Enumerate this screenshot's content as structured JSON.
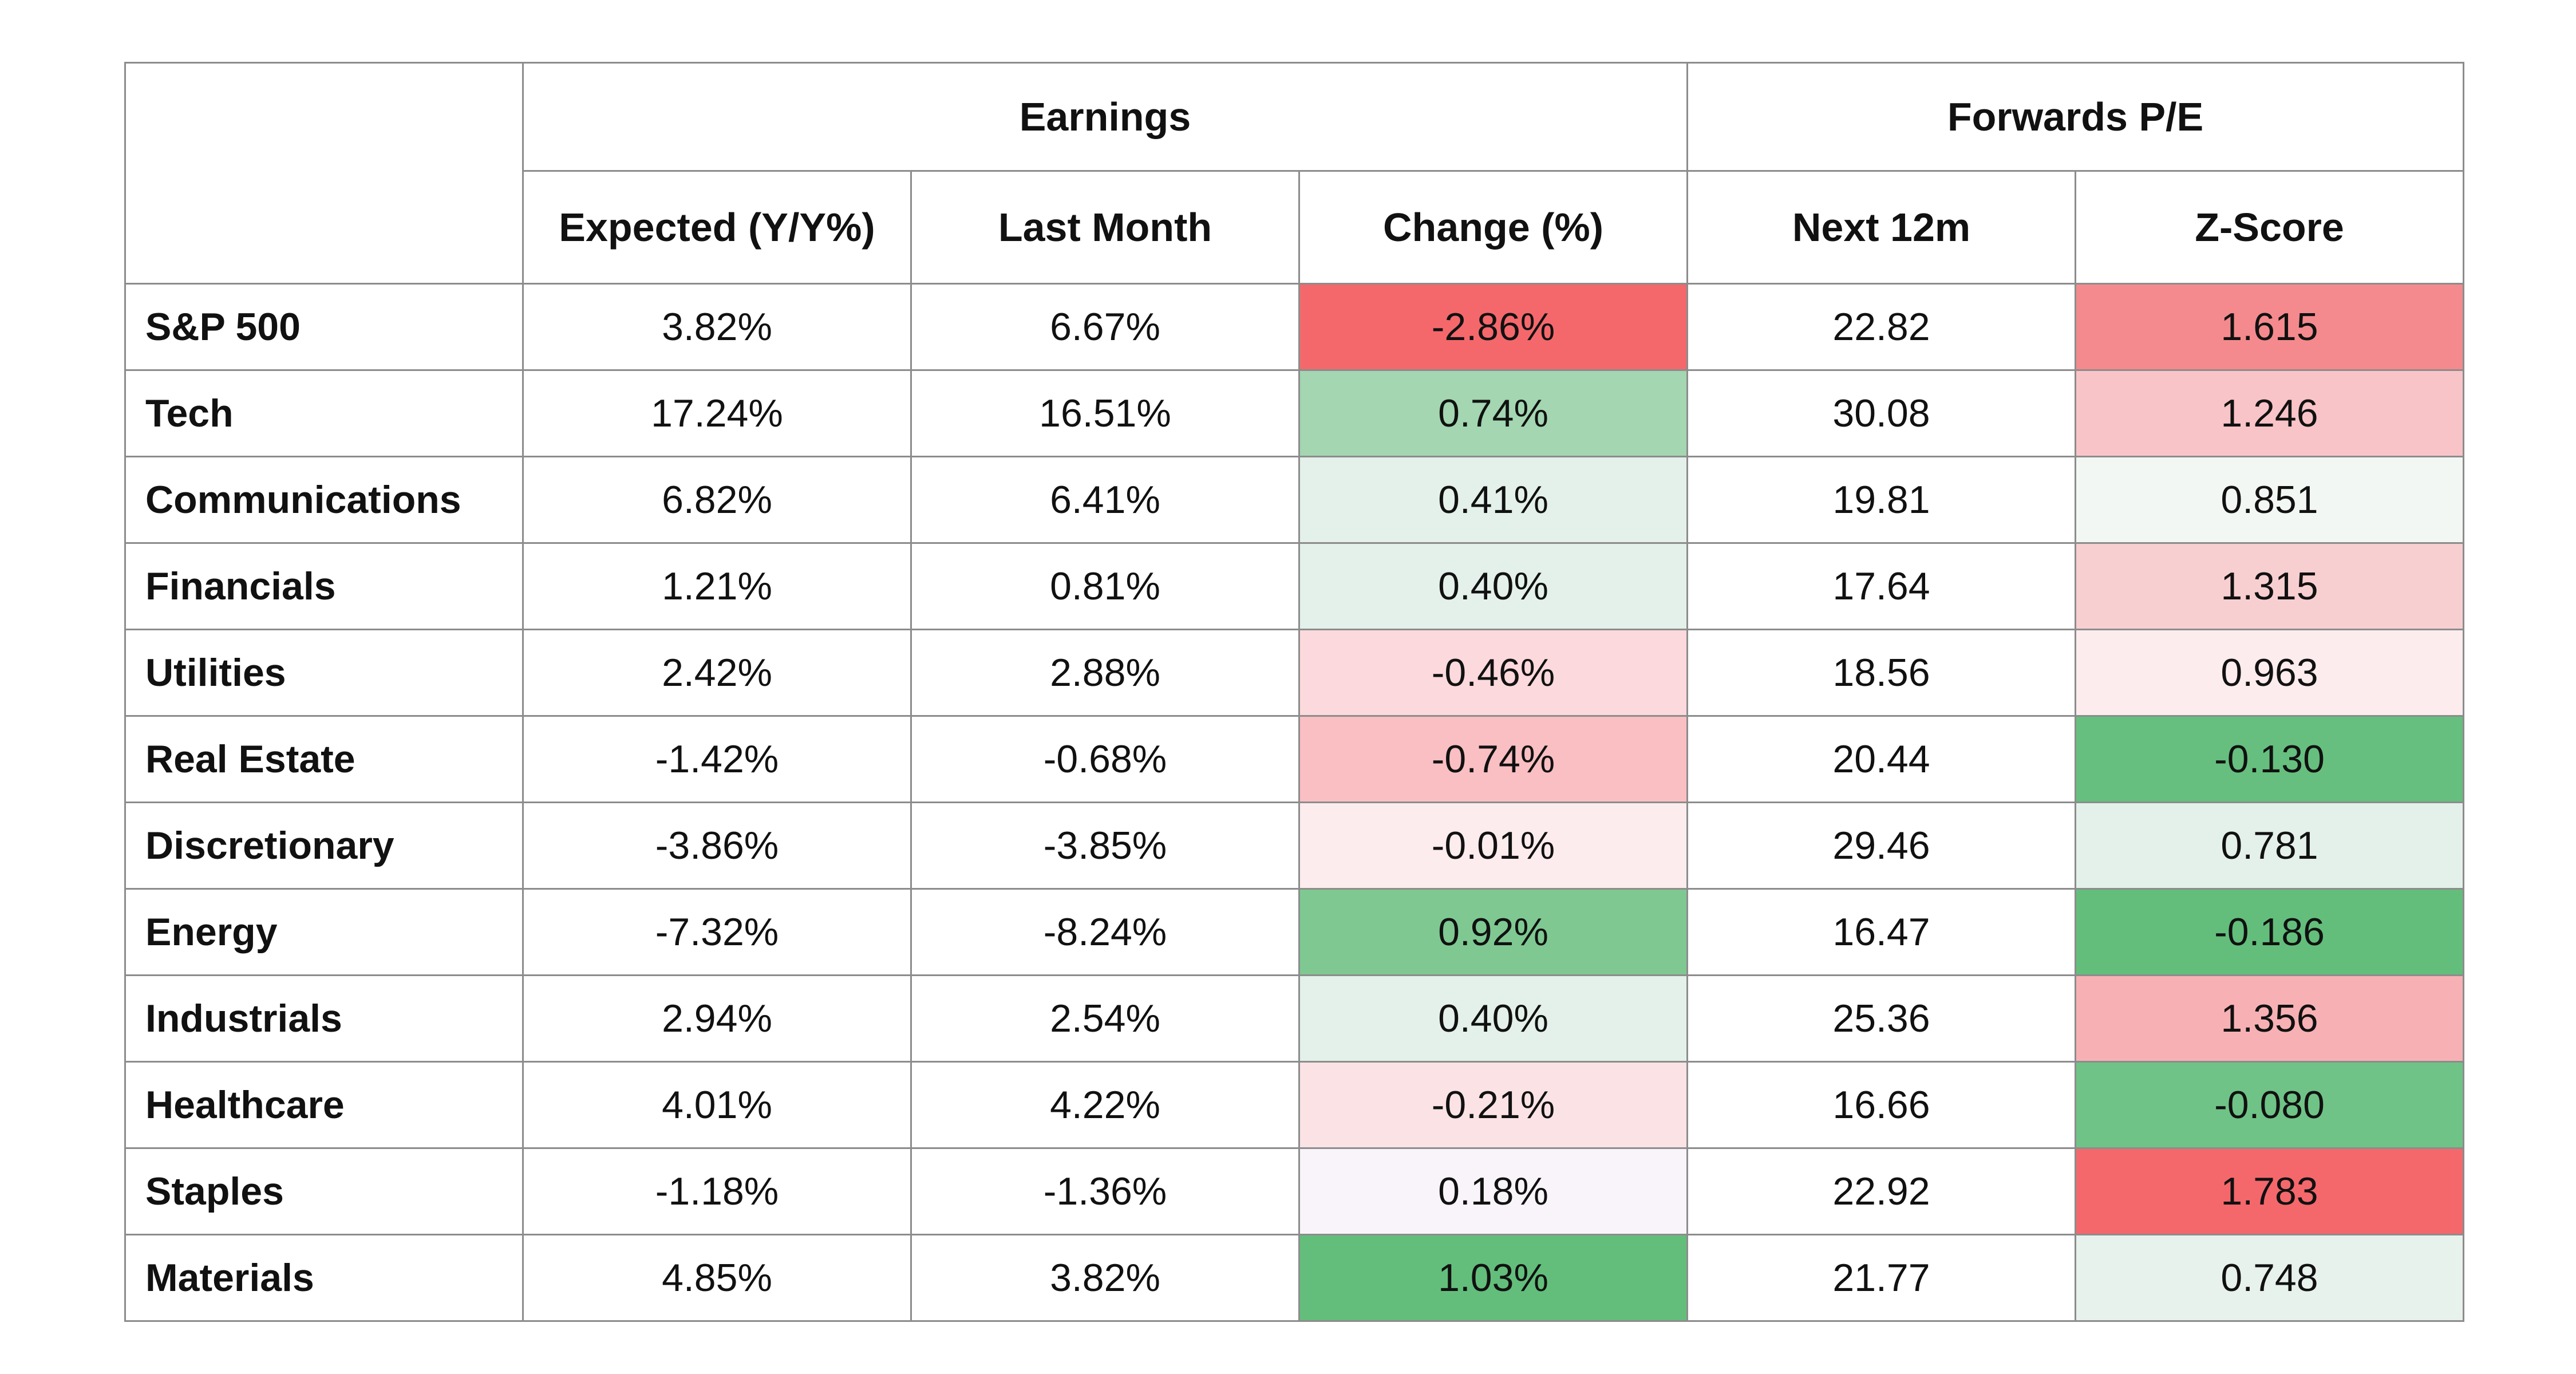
{
  "chart_data": {
    "type": "table",
    "title": "",
    "column_groups": [
      {
        "label": "",
        "span": 1
      },
      {
        "label": "Earnings",
        "span": 3
      },
      {
        "label": "Forwards P/E",
        "span": 2
      }
    ],
    "columns": [
      "",
      "Expected (Y/Y%)",
      "Last Month",
      "Change (%)",
      "Next 12m",
      "Z-Score"
    ],
    "rows": [
      {
        "label": "S&P 500",
        "cells": [
          "3.82%",
          "6.67%",
          "-2.86%",
          "22.82",
          "1.615"
        ],
        "change_color": "#f4686c",
        "z_color": "#f48a8d"
      },
      {
        "label": "Tech",
        "cells": [
          "17.24%",
          "16.51%",
          "0.74%",
          "30.08",
          "1.246"
        ],
        "change_color": "#a3d6b1",
        "z_color": "#f9c4c7"
      },
      {
        "label": "Communications",
        "cells": [
          "6.82%",
          "6.41%",
          "0.41%",
          "19.81",
          "0.851"
        ],
        "change_color": "#e4f1ea",
        "z_color": "#f2f7f4"
      },
      {
        "label": "Financials",
        "cells": [
          "1.21%",
          "0.81%",
          "0.40%",
          "17.64",
          "1.315"
        ],
        "change_color": "#e4f1ea",
        "z_color": "#f8cfd1"
      },
      {
        "label": "Utilities",
        "cells": [
          "2.42%",
          "2.88%",
          "-0.46%",
          "18.56",
          "0.963"
        ],
        "change_color": "#fbd9dc",
        "z_color": "#fcecee"
      },
      {
        "label": "Real Estate",
        "cells": [
          "-1.42%",
          "-0.68%",
          "-0.74%",
          "20.44",
          "-0.130"
        ],
        "change_color": "#f9bfc2",
        "z_color": "#66bf7e"
      },
      {
        "label": "Discretionary",
        "cells": [
          "-3.86%",
          "-3.85%",
          "-0.01%",
          "29.46",
          "0.781"
        ],
        "change_color": "#fdeced",
        "z_color": "#e4f1ea"
      },
      {
        "label": "Energy",
        "cells": [
          "-7.32%",
          "-8.24%",
          "0.92%",
          "16.47",
          "-0.186"
        ],
        "change_color": "#7fc892",
        "z_color": "#63be7b"
      },
      {
        "label": "Industrials",
        "cells": [
          "2.94%",
          "2.54%",
          "0.40%",
          "25.36",
          "1.356"
        ],
        "change_color": "#e4f1ea",
        "z_color": "#f7b1b4"
      },
      {
        "label": "Healthcare",
        "cells": [
          "4.01%",
          "4.22%",
          "-0.21%",
          "16.66",
          "-0.080"
        ],
        "change_color": "#fbe3e5",
        "z_color": "#6fc386"
      },
      {
        "label": "Staples",
        "cells": [
          "-1.18%",
          "-1.36%",
          "0.18%",
          "22.92",
          "1.783"
        ],
        "change_color": "#f9f4f9",
        "z_color": "#f4686c"
      },
      {
        "label": "Materials",
        "cells": [
          "4.85%",
          "3.82%",
          "1.03%",
          "21.77",
          "0.748"
        ],
        "change_color": "#63be7b",
        "z_color": "#e8f2ec"
      }
    ]
  }
}
